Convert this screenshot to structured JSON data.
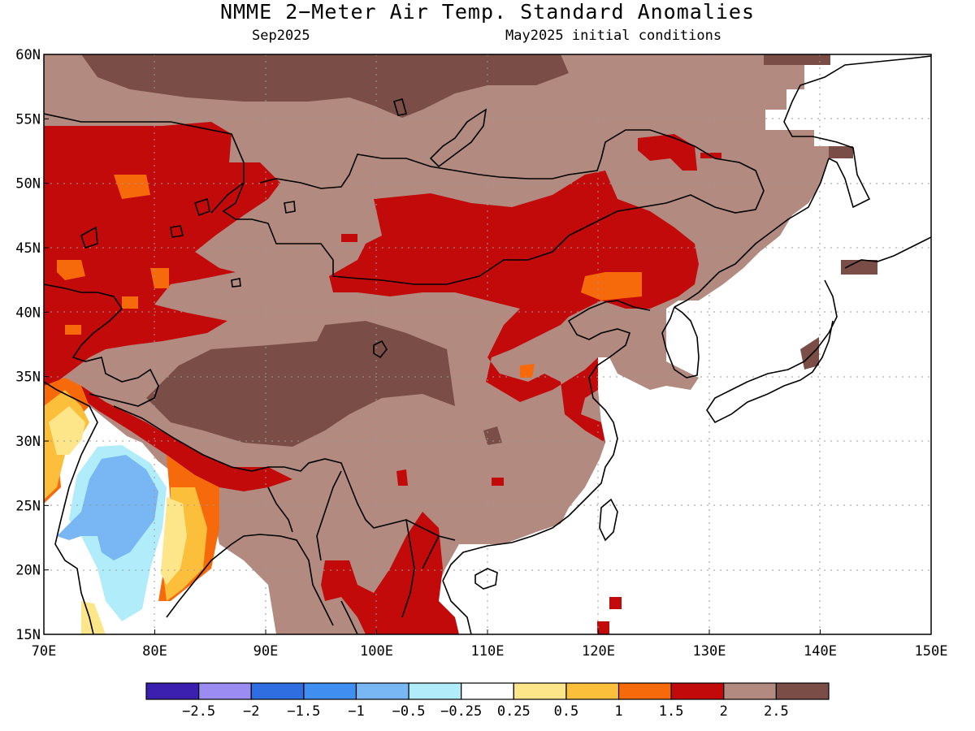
{
  "title": "NMME 2−Meter Air Temp. Standard Anomalies",
  "subtitle_left": "Sep2025",
  "subtitle_right": "May2025 initial conditions",
  "map": {
    "region": "East Asia",
    "lon_range": [
      70,
      150
    ],
    "lat_range": [
      15,
      60
    ],
    "lat_labels": [
      "60N",
      "55N",
      "50N",
      "45N",
      "40N",
      "35N",
      "30N",
      "25N",
      "20N",
      "15N"
    ],
    "lon_labels": [
      "70E",
      "80E",
      "90E",
      "100E",
      "110E",
      "120E",
      "130E",
      "140E",
      "150E"
    ],
    "grid": "dotted"
  },
  "colorbar": {
    "colors": [
      "#3b20b0",
      "#9a8cf2",
      "#2f6ee0",
      "#3f8ef0",
      "#78b6f4",
      "#b0ecfa",
      "#ffffff",
      "#fde68a",
      "#fbbf3c",
      "#f76a0c",
      "#c20a0a",
      "#b38a80",
      "#7a4e46"
    ],
    "tick_labels": [
      "−2.5",
      "−2",
      "−1.5",
      "−1",
      "−0.5",
      "−0.25",
      "0.25",
      "0.5",
      "1",
      "1.5",
      "2",
      "2.5"
    ]
  }
}
